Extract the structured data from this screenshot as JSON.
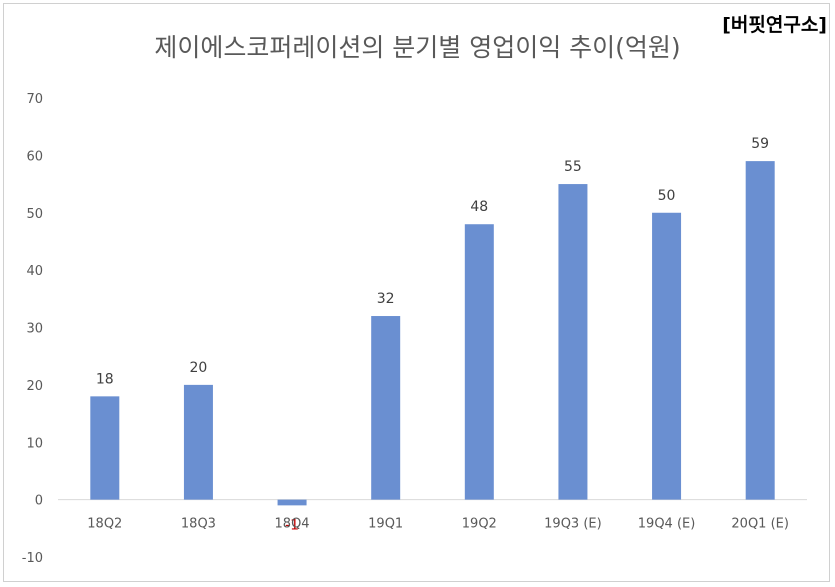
{
  "watermark": "[버핏연구소]",
  "chart_data": {
    "type": "bar",
    "title": "제이에스코퍼레이션의 분기별 영업이익 추이(억원)",
    "xlabel": "",
    "ylabel": "",
    "categories": [
      "18Q2",
      "18Q3",
      "18Q4",
      "19Q1",
      "19Q2",
      "19Q3 (E)",
      "19Q4 (E)",
      "20Q1 (E)"
    ],
    "values": [
      18,
      20,
      -1,
      32,
      48,
      55,
      50,
      59
    ],
    "data_labels": [
      "18",
      "20",
      "-1",
      "32",
      "48",
      "55",
      "50",
      "59"
    ],
    "ylim": [
      -10,
      70
    ],
    "yticks": [
      "70",
      "60",
      "50",
      "40",
      "30",
      "20",
      "10",
      "0",
      "-10"
    ],
    "grid": false,
    "legend": "none",
    "colors": {
      "bar": "#6a8fd1",
      "negative_label": "#c00000",
      "axis": "#d9d9d9"
    }
  }
}
